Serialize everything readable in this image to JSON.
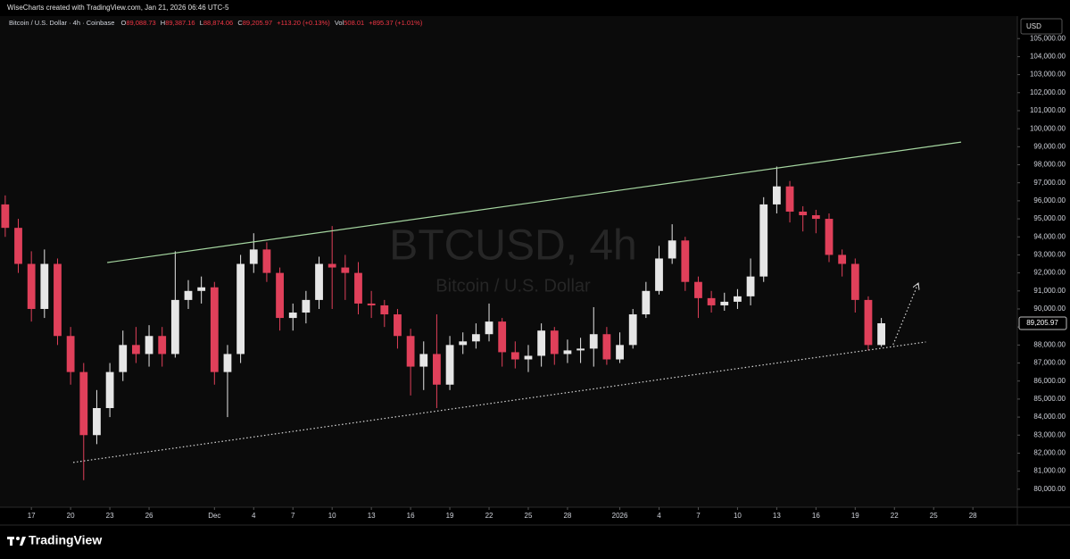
{
  "header": {
    "credit": "WiseCharts created with TradingView.com, Jan 21, 2026 06:46 UTC-5"
  },
  "legend": {
    "symbol": "Bitcoin / U.S. Dollar · 4h · Coinbase",
    "fields": [
      [
        "O",
        "89,088.73"
      ],
      [
        "H",
        "89,387.16"
      ],
      [
        "L",
        "88,874.06"
      ],
      [
        "C",
        "89,205.97"
      ]
    ],
    "change": "+113.20 (+0.13%)",
    "volume_label": "Vol",
    "volume": "508.01",
    "volume_change": "+895.37 (+1.01%)"
  },
  "watermark": {
    "title": "BTCUSD, 4h",
    "subtitle": "Bitcoin / U.S. Dollar"
  },
  "currency": "USD",
  "footer": {
    "brand": "TradingView"
  },
  "chart_data": {
    "type": "candlestick",
    "up_color": "#e6e6e6",
    "down_color": "#e0405a",
    "grid": false,
    "x": [
      15,
      16,
      17,
      18,
      19,
      20,
      21,
      22,
      23,
      24,
      25,
      26,
      27,
      28,
      29,
      30,
      31,
      32,
      33,
      34,
      35,
      36,
      37,
      38,
      39,
      40,
      41,
      42,
      43,
      44,
      45,
      46,
      47,
      48,
      49,
      50,
      51,
      52,
      53,
      54,
      55,
      56,
      57,
      58,
      59,
      60,
      61,
      62,
      63,
      64,
      65,
      66,
      67,
      68,
      69,
      70,
      71,
      72,
      73,
      74,
      75,
      76,
      77,
      78,
      79,
      80,
      81,
      82
    ],
    "open": [
      95800,
      94500,
      92500,
      90000,
      92500,
      88500,
      86500,
      83000,
      84500,
      86500,
      88000,
      87500,
      88500,
      87500,
      90500,
      91000,
      91200,
      86500,
      87500,
      92500,
      93300,
      92000,
      89500,
      89800,
      90500,
      92500,
      92300,
      92000,
      90300,
      90200,
      89700,
      88500,
      86800,
      87500,
      85800,
      88000,
      88200,
      88600,
      89300,
      87600,
      87200,
      87400,
      88800,
      87500,
      87700,
      87800,
      88600,
      87200,
      88000,
      89700,
      91000,
      92800,
      93800,
      91500,
      90600,
      90200,
      90400,
      90700,
      91800,
      95800,
      96800,
      95400,
      95200,
      95000,
      93000,
      92500,
      90500,
      88000
    ],
    "high": [
      96300,
      95000,
      93200,
      93300,
      92800,
      89000,
      87000,
      85500,
      87000,
      88800,
      89000,
      89100,
      89000,
      93200,
      91600,
      91800,
      91500,
      88000,
      93000,
      94200,
      93700,
      92300,
      90300,
      91000,
      92900,
      94600,
      93000,
      92600,
      91000,
      90500,
      90000,
      88900,
      88200,
      89700,
      88500,
      88700,
      89200,
      90300,
      89500,
      88200,
      88000,
      89200,
      89000,
      88300,
      88400,
      90100,
      89000,
      88700,
      90000,
      91500,
      93500,
      94700,
      94000,
      91800,
      91000,
      90900,
      91100,
      92800,
      96200,
      97900,
      97100,
      95700,
      95500,
      95300,
      93300,
      92800,
      90700,
      89500
    ],
    "low": [
      94000,
      92000,
      89300,
      89500,
      88000,
      85800,
      80500,
      82500,
      84000,
      86000,
      87000,
      86800,
      86800,
      87300,
      90000,
      90300,
      85800,
      84000,
      87000,
      92000,
      91500,
      88800,
      88800,
      89200,
      90000,
      90000,
      90500,
      89700,
      89500,
      89000,
      87800,
      85200,
      85500,
      84500,
      85500,
      87500,
      87800,
      88200,
      86800,
      86700,
      86500,
      86800,
      86900,
      87000,
      87000,
      86800,
      86900,
      87000,
      87800,
      89500,
      90800,
      92500,
      91000,
      89500,
      89800,
      89900,
      90000,
      90200,
      91500,
      95300,
      94800,
      94300,
      94200,
      92600,
      91800,
      89800,
      87700,
      87900
    ],
    "close": [
      94500,
      92500,
      90000,
      92500,
      88500,
      86500,
      83000,
      84500,
      86500,
      88000,
      87500,
      88500,
      87500,
      90500,
      91000,
      91200,
      86500,
      87500,
      92500,
      93300,
      92000,
      89500,
      89800,
      90500,
      92500,
      92300,
      92000,
      90300,
      90200,
      89700,
      88500,
      86800,
      87500,
      85800,
      88000,
      88200,
      88600,
      89300,
      87600,
      87200,
      87400,
      88800,
      87500,
      87700,
      87800,
      88600,
      87200,
      88000,
      89700,
      91000,
      92800,
      93800,
      91500,
      90600,
      90200,
      90400,
      90700,
      91800,
      95800,
      96800,
      95400,
      95200,
      95000,
      93000,
      92500,
      90500,
      88000,
      89205.97
    ],
    "last_price": 89205.97,
    "last_price_label": "89,205.97",
    "xlim": [
      14.6,
      92.4
    ],
    "ylim": [
      79000,
      106250
    ],
    "xticks": [
      17,
      20,
      23,
      26,
      {
        "value": 31,
        "label": "Dec"
      },
      {
        "value": 34,
        "label": "4"
      },
      {
        "value": 37,
        "label": "7"
      },
      {
        "value": 40,
        "label": "10"
      },
      {
        "value": 43,
        "label": "13"
      },
      {
        "value": 46,
        "label": "16"
      },
      {
        "value": 49,
        "label": "19"
      },
      {
        "value": 52,
        "label": "22"
      },
      {
        "value": 55,
        "label": "25"
      },
      {
        "value": 58,
        "label": "28"
      },
      {
        "value": 62,
        "label": "2026"
      },
      {
        "value": 65,
        "label": "4"
      },
      {
        "value": 68,
        "label": "7"
      },
      {
        "value": 71,
        "label": "10"
      },
      {
        "value": 74,
        "label": "13"
      },
      {
        "value": 77,
        "label": "16"
      },
      {
        "value": 80,
        "label": "19"
      },
      {
        "value": 83,
        "label": "22"
      },
      {
        "value": 86,
        "label": "25"
      },
      {
        "value": 89,
        "label": "28"
      }
    ],
    "yticks": [
      {
        "value": 80000,
        "label": "80,000.00"
      },
      {
        "value": 81000,
        "label": "81,000.00"
      },
      {
        "value": 82000,
        "label": "82,000.00"
      },
      {
        "value": 83000,
        "label": "83,000.00"
      },
      {
        "value": 84000,
        "label": "84,000.00"
      },
      {
        "value": 85000,
        "label": "85,000.00"
      },
      {
        "value": 86000,
        "label": "86,000.00"
      },
      {
        "value": 87000,
        "label": "87,000.00"
      },
      {
        "value": 88000,
        "label": "88,000.00"
      },
      {
        "value": 89000,
        "label": "89,000.00"
      },
      {
        "value": 90000,
        "label": "90,000.00"
      },
      {
        "value": 91000,
        "label": "91,000.00"
      },
      {
        "value": 92000,
        "label": "92,000.00"
      },
      {
        "value": 93000,
        "label": "93,000.00"
      },
      {
        "value": 94000,
        "label": "94,000.00"
      },
      {
        "value": 95000,
        "label": "95,000.00"
      },
      {
        "value": 96000,
        "label": "96,000.00"
      },
      {
        "value": 97000,
        "label": "97,000.00"
      },
      {
        "value": 98000,
        "label": "98,000.00"
      },
      {
        "value": 99000,
        "label": "99,000.00"
      },
      {
        "value": 100000,
        "label": "100,000.00"
      },
      {
        "value": 101000,
        "label": "101,000.00"
      },
      {
        "value": 102000,
        "label": "102,000.00"
      },
      {
        "value": 103000,
        "label": "103,000.00"
      },
      {
        "value": 104000,
        "label": "104,000.00"
      },
      {
        "value": 105000,
        "label": "105,000.00"
      }
    ],
    "trendlines": [
      {
        "color": "#a5d6a0",
        "style": "solid",
        "arrow": false,
        "x": [
          22.8,
          88.1
        ],
        "y": [
          92574,
          99257
        ]
      },
      {
        "color": "#d8d8d8",
        "style": "dotted",
        "arrow": false,
        "x": [
          20.2,
          85.4
        ],
        "y": [
          81485,
          88168
        ]
      },
      {
        "color": "#d8d8d8",
        "style": "dotted",
        "arrow": true,
        "x": [
          82.9,
          84.8
        ],
        "y": [
          88020,
          91386
        ]
      }
    ]
  }
}
